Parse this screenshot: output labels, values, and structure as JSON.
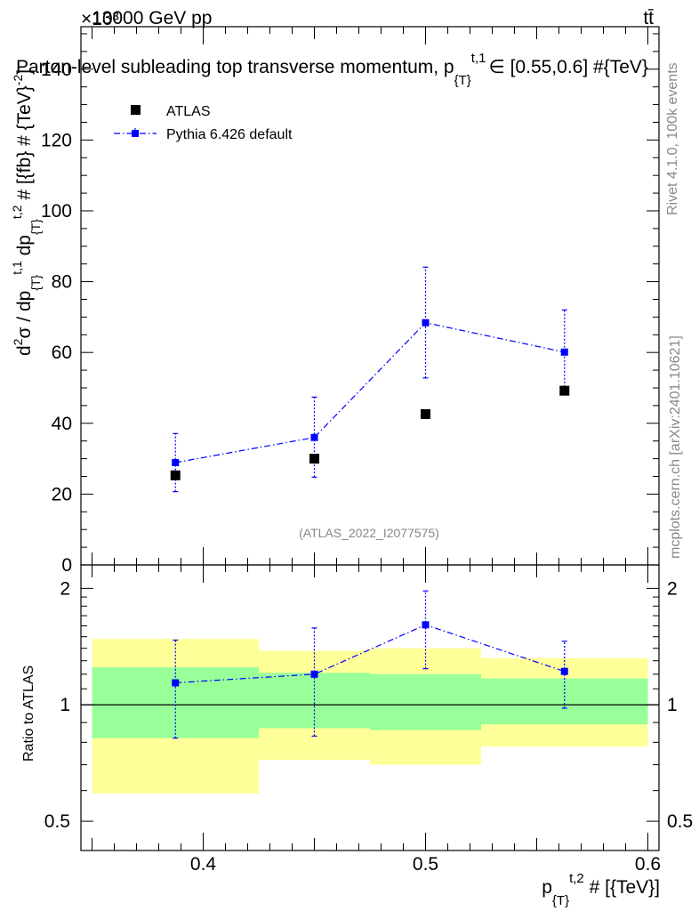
{
  "header": {
    "energy_label": "13000 GeV pp",
    "process_label": "tt̄",
    "exponent_label": "×10³"
  },
  "chart_data": [
    {
      "type": "scatter",
      "title": "Parton-level subleading top transverse momentum, p_{T}^{t,1} ∈ [0.55,0.6] #{TeV}",
      "title_main": "Parton-level subleading top transverse momentum, p",
      "title_sub": "{T}",
      "title_sup": "t,1",
      "title_tail": "∈ [0.55,0.6] #{TeV}",
      "ylabel_parts": {
        "d": "d",
        "sq": "2",
        "sigma": "σ / dp",
        "sub1": "{T}",
        "sup1": "t,1",
        "dp": " dp",
        "sub2": "{T}",
        "sup2": "t,2",
        "tail": " # [{fb} # {TeV}",
        "tailsup": "-2",
        "end": "]"
      },
      "xlim": [
        0.345,
        0.605
      ],
      "ylim": [
        0,
        152
      ],
      "y_scale": "×10³",
      "yticks": [
        0,
        20,
        40,
        60,
        80,
        100,
        120,
        140
      ],
      "ytick_labels": [
        "0",
        "20",
        "40",
        "60",
        "80",
        "100",
        "120",
        "140"
      ],
      "watermark": "(ATLAS_2022_I2077575)",
      "legend": {
        "placement": "top-left",
        "entries": [
          "ATLAS",
          "Pythia 6.426 default"
        ]
      },
      "series": [
        {
          "name": "ATLAS",
          "color": "#000000",
          "x": [
            0.3875,
            0.45,
            0.5,
            0.5625
          ],
          "y": [
            25.3,
            30.0,
            42.6,
            49.2
          ]
        },
        {
          "name": "Pythia 6.426 default",
          "color": "#0000ff",
          "x": [
            0.3875,
            0.45,
            0.5,
            0.5625
          ],
          "y": [
            28.9,
            36.0,
            68.4,
            60.1
          ],
          "yerr_low": [
            20.7,
            24.8,
            52.8,
            48.3
          ],
          "yerr_high": [
            37.1,
            47.4,
            84.1,
            72.0
          ]
        }
      ]
    },
    {
      "type": "scatter",
      "ylabel": "Ratio to ATLAS",
      "xlabel_parts": {
        "p": "p",
        "sub": "{T}",
        "sup": "t,2",
        "tail": " # [{TeV}]"
      },
      "xlim": [
        0.345,
        0.605
      ],
      "ylim": [
        0.42,
        2.3
      ],
      "y_scale": "log",
      "yticks": [
        0.5,
        1,
        2
      ],
      "ytick_labels": [
        "0.5",
        "1",
        "2"
      ],
      "xticks": [
        0.4,
        0.5,
        0.6
      ],
      "xtick_labels": [
        "0.4",
        "0.5",
        "0.6"
      ],
      "bands": [
        {
          "x0": 0.35,
          "x1": 0.425,
          "inner": [
            0.82,
            1.25
          ],
          "outer": [
            0.59,
            1.48
          ]
        },
        {
          "x0": 0.425,
          "x1": 0.475,
          "inner": [
            0.87,
            1.21
          ],
          "outer": [
            0.72,
            1.38
          ]
        },
        {
          "x0": 0.475,
          "x1": 0.525,
          "inner": [
            0.86,
            1.2
          ],
          "outer": [
            0.7,
            1.4
          ]
        },
        {
          "x0": 0.525,
          "x1": 0.6,
          "inner": [
            0.89,
            1.17
          ],
          "outer": [
            0.78,
            1.32
          ]
        }
      ],
      "band_colors": {
        "inner": "#99ff99",
        "outer": "#ffff99"
      },
      "series": [
        {
          "name": "Pythia 6.426 default / ATLAS",
          "color": "#0000ff",
          "x": [
            0.3875,
            0.45,
            0.5,
            0.5625
          ],
          "y": [
            1.14,
            1.2,
            1.61,
            1.22
          ],
          "yerr_low": [
            0.82,
            0.83,
            1.24,
            0.98
          ],
          "yerr_high": [
            1.47,
            1.58,
            1.97,
            1.46
          ]
        }
      ]
    }
  ],
  "side_labels": {
    "rivet": "Rivet 4.1.0,  100k events",
    "mcplots": "mcplots.cern.ch [arXiv:2401.10621]"
  }
}
